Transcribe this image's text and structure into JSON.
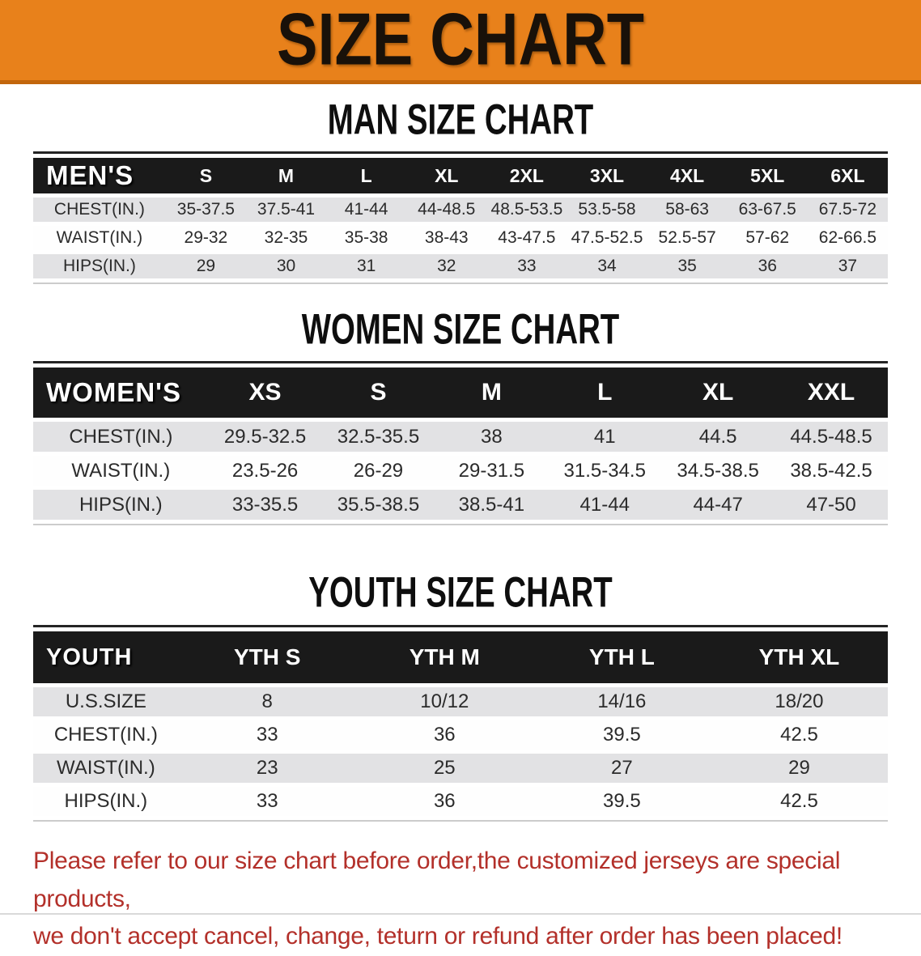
{
  "banner": {
    "title": "SIZE CHART"
  },
  "colors": {
    "banner_orange": "#E8811B",
    "banner_border": "#C2660C",
    "table_header_black": "#1A1A1A",
    "row_gray": "#E2E2E4",
    "disclaimer_red": "#B3302A"
  },
  "sections": [
    {
      "id": "men",
      "heading": "MAN SIZE CHART",
      "header_label": "MEN'S",
      "columns": [
        "S",
        "M",
        "L",
        "XL",
        "2XL",
        "3XL",
        "4XL",
        "5XL",
        "6XL"
      ],
      "rows": [
        {
          "label": "CHEST(IN.)",
          "values": [
            "35-37.5",
            "37.5-41",
            "41-44",
            "44-48.5",
            "48.5-53.5",
            "53.5-58",
            "58-63",
            "63-67.5",
            "67.5-72"
          ]
        },
        {
          "label": "WAIST(IN.)",
          "values": [
            "29-32",
            "32-35",
            "35-38",
            "38-43",
            "43-47.5",
            "47.5-52.5",
            "52.5-57",
            "57-62",
            "62-66.5"
          ]
        },
        {
          "label": "HIPS(IN.)",
          "values": [
            "29",
            "30",
            "31",
            "32",
            "33",
            "34",
            "35",
            "36",
            "37"
          ]
        }
      ]
    },
    {
      "id": "women",
      "heading": "WOMEN SIZE CHART",
      "header_label": "WOMEN'S",
      "columns": [
        "XS",
        "S",
        "M",
        "L",
        "XL",
        "XXL"
      ],
      "rows": [
        {
          "label": "CHEST(IN.)",
          "values": [
            "29.5-32.5",
            "32.5-35.5",
            "38",
            "41",
            "44.5",
            "44.5-48.5"
          ]
        },
        {
          "label": "WAIST(IN.)",
          "values": [
            "23.5-26",
            "26-29",
            "29-31.5",
            "31.5-34.5",
            "34.5-38.5",
            "38.5-42.5"
          ]
        },
        {
          "label": "HIPS(IN.)",
          "values": [
            "33-35.5",
            "35.5-38.5",
            "38.5-41",
            "41-44",
            "44-47",
            "47-50"
          ]
        }
      ]
    },
    {
      "id": "youth",
      "heading": "YOUTH SIZE CHART",
      "header_label": "YOUTH",
      "columns": [
        "YTH S",
        "YTH M",
        "YTH L",
        "YTH XL"
      ],
      "rows": [
        {
          "label": "U.S.SIZE",
          "values": [
            "8",
            "10/12",
            "14/16",
            "18/20"
          ]
        },
        {
          "label": "CHEST(IN.)",
          "values": [
            "33",
            "36",
            "39.5",
            "42.5"
          ]
        },
        {
          "label": "WAIST(IN.)",
          "values": [
            "23",
            "25",
            "27",
            "29"
          ]
        },
        {
          "label": "HIPS(IN.)",
          "values": [
            "33",
            "36",
            "39.5",
            "42.5"
          ]
        }
      ]
    }
  ],
  "disclaimer": {
    "line1": "Please refer to our size chart before order,the customized jerseys are special products,",
    "line2": "we don't accept cancel, change, teturn or refund after order has been placed!"
  }
}
